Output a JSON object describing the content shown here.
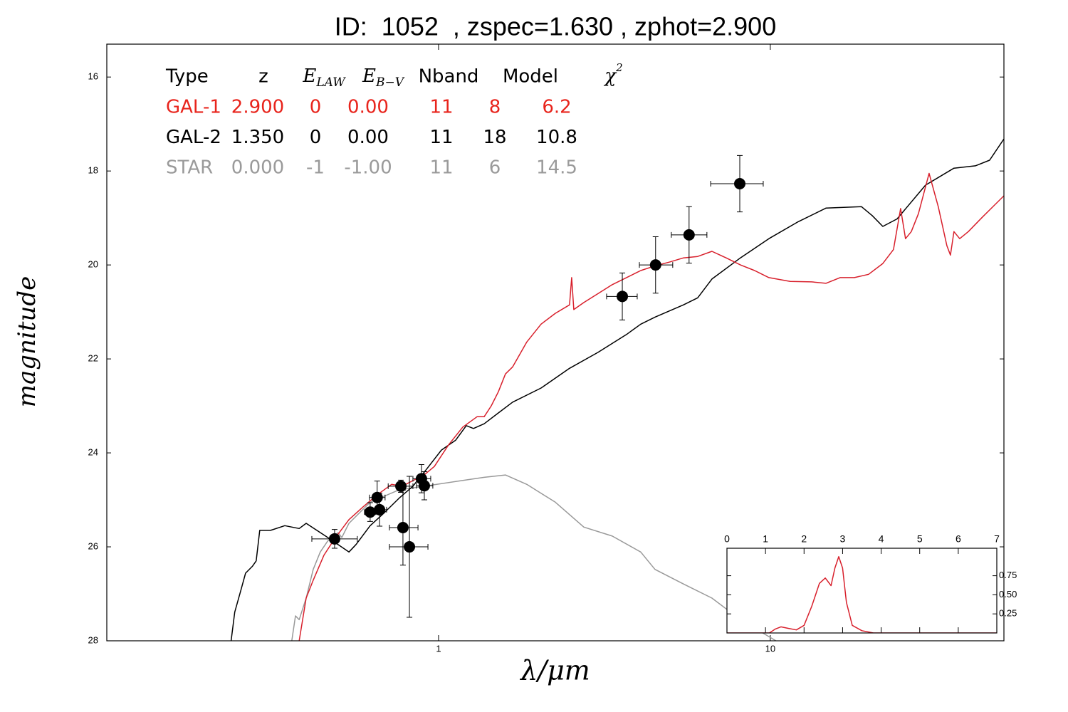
{
  "chart_data": [
    {
      "type": "line",
      "title": "ID:  1052  , zspec=1.630 , zphot=2.900",
      "xlabel": "λ/μm",
      "ylabel": "magnitude",
      "xscale": "log",
      "xlim": [
        0.1,
        50.6
      ],
      "xticks": [
        1,
        10
      ],
      "ylim": [
        28,
        15.3
      ],
      "yticks": [
        16,
        18,
        20,
        22,
        24,
        26,
        28
      ],
      "series": [
        {
          "color": "#d8202c",
          "x": [
            0.38,
            0.399,
            0.419,
            0.4513,
            0.486,
            0.537,
            0.592,
            0.654,
            0.722,
            0.777,
            0.837,
            0.901,
            0.971,
            1.072,
            1.183,
            1.306,
            1.372,
            1.441,
            1.514,
            1.591,
            1.672,
            1.845,
            2.037,
            2.248,
            2.482,
            2.519,
            2.557,
            2.741,
            3.025,
            3.339,
            3.686,
            4.069,
            4.491,
            4.958,
            5.472,
            6.041,
            6.668,
            7.362,
            8.126,
            8.971,
            9.9,
            11.48,
            13.32,
            14.71,
            16.23,
            17.92,
            19.78,
            21.83,
            23.51,
            24.7,
            25.56,
            26.6,
            27.95,
            30.1,
            32.09,
            34.06,
            34.91,
            35.77,
            37.22,
            39.52,
            43.6,
            50.57
          ],
          "values": [
            28.0,
            27.09,
            26.71,
            26.18,
            25.83,
            25.42,
            25.15,
            24.89,
            24.67,
            24.71,
            24.59,
            24.48,
            24.29,
            23.83,
            23.45,
            23.23,
            23.23,
            23.0,
            22.7,
            22.32,
            22.17,
            21.64,
            21.26,
            21.03,
            20.85,
            20.27,
            20.95,
            20.8,
            20.61,
            20.42,
            20.27,
            20.12,
            20.02,
            19.94,
            19.85,
            19.82,
            19.71,
            19.85,
            20.0,
            20.12,
            20.27,
            20.35,
            20.36,
            20.39,
            20.27,
            20.27,
            20.2,
            19.97,
            19.67,
            18.8,
            19.44,
            19.29,
            18.91,
            18.05,
            18.76,
            19.59,
            19.79,
            19.29,
            19.44,
            19.29,
            18.98,
            18.53
          ]
        },
        {
          "color": "#000000",
          "x": [
            0.237,
            0.243,
            0.2532,
            0.262,
            0.275,
            0.282,
            0.289,
            0.3115,
            0.344,
            0.38,
            0.399,
            0.463,
            0.537,
            0.564,
            0.622,
            0.687,
            0.759,
            0.837,
            0.924,
            1.02,
            1.126,
            1.212,
            1.274,
            1.372,
            1.514,
            1.672,
            2.037,
            2.482,
            3.025,
            3.686,
            4.069,
            4.491,
            5.472,
            6.041,
            6.668,
            8.126,
            9.9,
            12.06,
            14.71,
            18.83,
            20.28,
            21.83,
            24.1,
            29.37,
            35.77,
            41.5,
            45.81,
            50.57
          ],
          "values": [
            28.0,
            27.39,
            26.94,
            26.56,
            26.41,
            26.3,
            25.65,
            25.65,
            25.55,
            25.61,
            25.5,
            25.8,
            26.11,
            25.95,
            25.55,
            25.27,
            24.97,
            24.71,
            24.33,
            23.94,
            23.73,
            23.42,
            23.48,
            23.38,
            23.15,
            22.92,
            22.62,
            22.2,
            21.86,
            21.48,
            21.26,
            21.11,
            20.85,
            20.7,
            20.3,
            19.85,
            19.44,
            19.09,
            18.79,
            18.76,
            18.95,
            19.18,
            19.02,
            18.3,
            17.94,
            17.89,
            17.77,
            17.32
          ]
        },
        {
          "color": "#999999",
          "x": [
            0.361,
            0.3705,
            0.38,
            0.399,
            0.419,
            0.44,
            0.463,
            0.498,
            0.511,
            0.537,
            0.622,
            0.759,
            0.924,
            1.126,
            1.372,
            1.591,
            1.845,
            2.248,
            2.741,
            3.339,
            4.069,
            4.491,
            5.472,
            6.668,
            8.126,
            10.4
          ],
          "values": [
            28.0,
            27.47,
            27.55,
            27.09,
            26.48,
            26.11,
            25.88,
            25.7,
            25.8,
            25.5,
            25.05,
            24.79,
            24.7,
            24.61,
            24.52,
            24.47,
            24.67,
            25.05,
            25.58,
            25.77,
            26.11,
            26.48,
            26.79,
            27.09,
            27.55,
            28.0
          ]
        }
      ],
      "points": {
        "color": "#000000",
        "x": [
          0.486,
          0.622,
          0.653,
          0.664,
          0.77,
          0.781,
          0.817,
          0.888,
          0.906,
          3.58,
          4.51,
          5.69,
          8.09
        ],
        "xmin": [
          0.415,
          0.598,
          0.619,
          0.632,
          0.705,
          0.711,
          0.711,
          0.837,
          0.858,
          3.21,
          4.03,
          5.03,
          6.61
        ],
        "xmax": [
          0.569,
          0.647,
          0.69,
          0.697,
          0.837,
          0.867,
          0.929,
          0.947,
          0.961,
          3.97,
          5.08,
          6.44,
          9.52
        ],
        "values": [
          25.83,
          25.26,
          24.95,
          25.21,
          24.71,
          25.59,
          26.0,
          24.55,
          24.7,
          20.67,
          20.0,
          19.36,
          18.27
        ],
        "yerr": [
          0.2,
          0.2,
          0.35,
          0.35,
          0.13,
          0.8,
          1.5,
          0.3,
          0.3,
          0.5,
          0.6,
          0.6,
          0.6
        ]
      },
      "table": {
        "header": [
          "Type",
          "z",
          {
            "text": "E",
            "sub": "LAW"
          },
          {
            "text": "E",
            "sub": "B−V"
          },
          "Nband",
          "Model",
          {
            "text": "χ",
            "sup": "2"
          }
        ],
        "rows": [
          {
            "color": "#e8241c",
            "cells": [
              "GAL-1",
              "2.900",
              "0",
              "0.00",
              "11",
              "8",
              "6.2"
            ]
          },
          {
            "color": "#000000",
            "cells": [
              "GAL-2",
              "1.350",
              "0",
              "0.00",
              "11",
              "18",
              "10.8"
            ]
          },
          {
            "color": "#9a9a9a",
            "cells": [
              "STAR",
              "0.000",
              "-1",
              "-1.00",
              "11",
              "6",
              "14.5"
            ]
          }
        ]
      }
    },
    {
      "type": "line",
      "xlim": [
        0,
        7
      ],
      "xticks": [
        0,
        1,
        2,
        3,
        4,
        5,
        6,
        7
      ],
      "ylim": [
        0,
        1.11
      ],
      "yticks": [
        0.25,
        {
          "value": 0.5,
          "label": "0.50"
        },
        0.75
      ],
      "series": [
        {
          "color": "#d8202c",
          "x": [
            0,
            1.1,
            1.25,
            1.4,
            1.6,
            1.8,
            2.0,
            2.2,
            2.4,
            2.55,
            2.7,
            2.8,
            2.9,
            3.0,
            3.1,
            3.25,
            3.5,
            3.8,
            7
          ],
          "values": [
            0,
            0,
            0.05,
            0.08,
            0.06,
            0.04,
            0.1,
            0.35,
            0.65,
            0.72,
            0.62,
            0.85,
            1.0,
            0.85,
            0.4,
            0.1,
            0.03,
            0,
            0
          ]
        }
      ]
    }
  ]
}
